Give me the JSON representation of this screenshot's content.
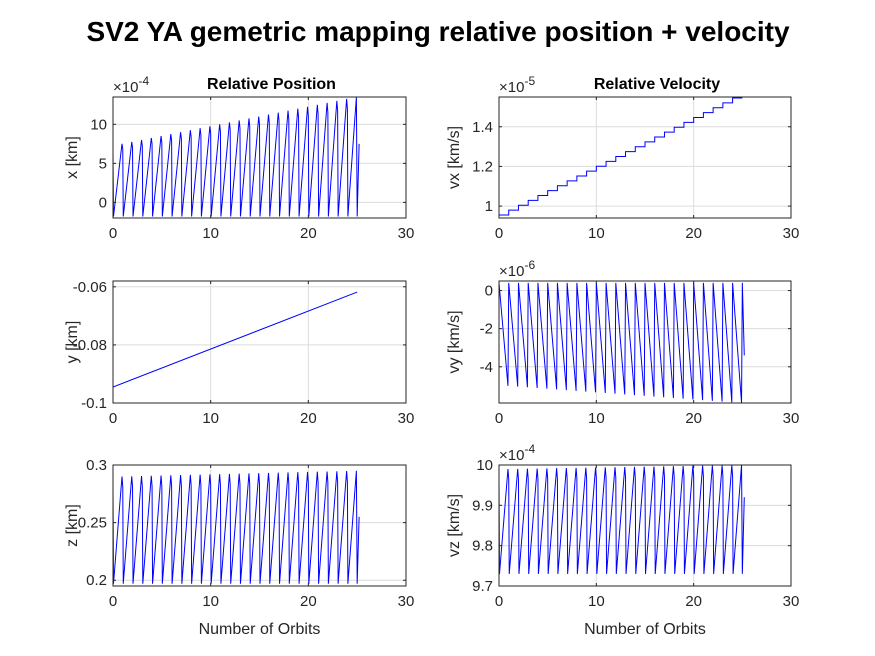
{
  "figure_title": "SV2 YA gemetric mapping relative position + velocity",
  "chart_data": [
    {
      "id": "x",
      "type": "line",
      "title": "Relative Position",
      "xlabel": "",
      "ylabel": "x [km]",
      "exponent": "-4",
      "xlim": [
        0,
        30
      ],
      "ylim": [
        -2,
        13.5
      ],
      "xticks": [
        0,
        10,
        20,
        30
      ],
      "xticklabels": [
        "0",
        "10",
        "20",
        "30"
      ],
      "yticks": [
        0,
        5,
        10
      ],
      "yticklabels": [
        "0",
        "5",
        "10"
      ],
      "grid": true,
      "series": [
        {
          "color": "#0000ff",
          "pattern": "sawtooth",
          "x_start": 0,
          "x_end": 25,
          "periods": 25,
          "low": -1.8,
          "high_start": 7.5,
          "high_end": 13.5,
          "final_value": 7.5
        }
      ]
    },
    {
      "id": "vx",
      "type": "line",
      "title": "Relative Velocity",
      "xlabel": "",
      "ylabel": "vx [km/s]",
      "exponent": "-5",
      "xlim": [
        0,
        30
      ],
      "ylim": [
        0.94,
        1.55
      ],
      "xticks": [
        0,
        10,
        20,
        30
      ],
      "xticklabels": [
        "0",
        "10",
        "20",
        "30"
      ],
      "yticks": [
        1,
        1.2,
        1.4
      ],
      "yticklabels": [
        "1",
        "1.2",
        "1.4"
      ],
      "grid": true,
      "series": [
        {
          "color": "#0000ff",
          "pattern": "staircase",
          "x_start": 0,
          "x_end": 25,
          "start": 0.955,
          "end": 1.545,
          "steps": 25
        }
      ]
    },
    {
      "id": "y",
      "type": "line",
      "title": "",
      "xlabel": "",
      "ylabel": "y [km]",
      "exponent": "",
      "xlim": [
        0,
        30
      ],
      "ylim": [
        -0.1,
        -0.058
      ],
      "xticks": [
        0,
        10,
        20,
        30
      ],
      "xticklabels": [
        "0",
        "10",
        "20",
        "30"
      ],
      "yticks": [
        -0.1,
        -0.08,
        -0.06
      ],
      "yticklabels": [
        "-0.1",
        "-0.08",
        "-0.06"
      ],
      "grid": true,
      "series": [
        {
          "color": "#0000ff",
          "pattern": "linear",
          "x": [
            0,
            25
          ],
          "y": [
            -0.0945,
            -0.0618
          ]
        }
      ]
    },
    {
      "id": "vy",
      "type": "line",
      "title": "",
      "xlabel": "",
      "ylabel": "vy [km/s]",
      "exponent": "-6",
      "xlim": [
        0,
        30
      ],
      "ylim": [
        -5.9,
        0.5
      ],
      "xticks": [
        0,
        10,
        20,
        30
      ],
      "xticklabels": [
        "0",
        "10",
        "20",
        "30"
      ],
      "yticks": [
        -4,
        -2,
        0
      ],
      "yticklabels": [
        "-4",
        "-2",
        "0"
      ],
      "grid": true,
      "series": [
        {
          "color": "#0000ff",
          "pattern": "sawtooth_down",
          "x_start": 0,
          "x_end": 25,
          "periods": 25,
          "high": 0.4,
          "low_start": -5.0,
          "low_end": -5.9,
          "final_value": -3.4
        }
      ]
    },
    {
      "id": "z",
      "type": "line",
      "title": "",
      "xlabel": "Number of Orbits",
      "ylabel": "z [km]",
      "exponent": "",
      "xlim": [
        0,
        30
      ],
      "ylim": [
        0.195,
        0.3
      ],
      "xticks": [
        0,
        10,
        20,
        30
      ],
      "xticklabels": [
        "0",
        "10",
        "20",
        "30"
      ],
      "yticks": [
        0.2,
        0.25,
        0.3
      ],
      "yticklabels": [
        "0.2",
        "0.25",
        "0.3"
      ],
      "grid": true,
      "series": [
        {
          "color": "#0000ff",
          "pattern": "sawtooth",
          "x_start": 0,
          "x_end": 25,
          "periods": 25,
          "low": 0.197,
          "high_start": 0.29,
          "high_end": 0.295,
          "final_value": 0.255
        }
      ]
    },
    {
      "id": "vz",
      "type": "line",
      "title": "",
      "xlabel": "Number of Orbits",
      "ylabel": "vz [km/s]",
      "exponent": "-4",
      "xlim": [
        0,
        30
      ],
      "ylim": [
        9.7,
        10.0
      ],
      "xticks": [
        0,
        10,
        20,
        30
      ],
      "xticklabels": [
        "0",
        "10",
        "20",
        "30"
      ],
      "yticks": [
        9.7,
        9.8,
        9.9,
        10
      ],
      "yticklabels": [
        "9.7",
        "9.8",
        "9.9",
        "10"
      ],
      "grid": true,
      "series": [
        {
          "color": "#0000ff",
          "pattern": "sawtooth",
          "x_start": 0,
          "x_end": 25,
          "periods": 25,
          "low": 9.73,
          "high_start": 9.99,
          "high_end": 10.0,
          "final_value": 9.92
        }
      ]
    }
  ]
}
